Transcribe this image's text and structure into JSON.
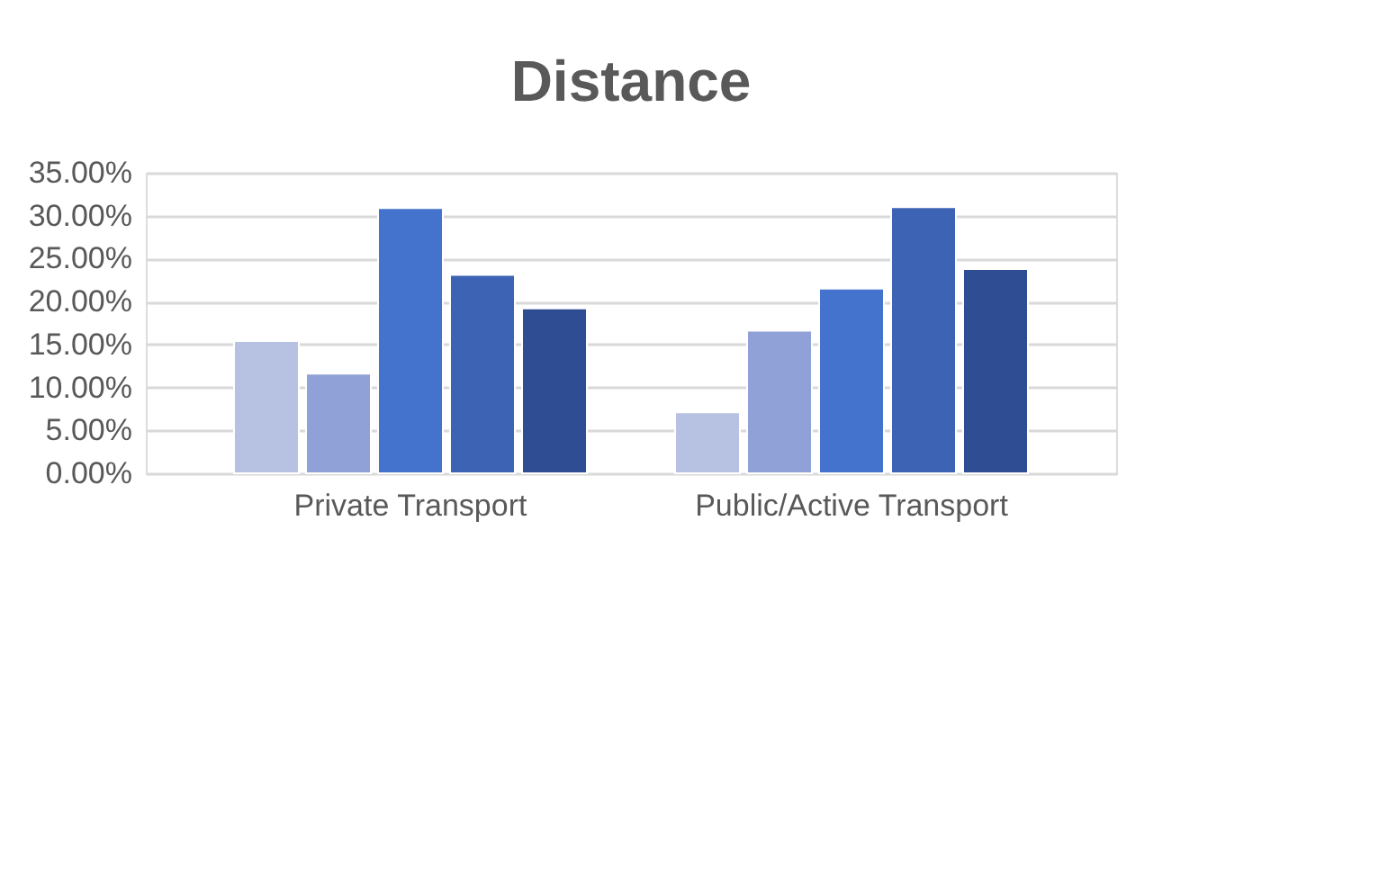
{
  "chart_data": {
    "type": "bar",
    "title": "Distance",
    "categories": [
      "Private Transport",
      "Public/Active Transport"
    ],
    "series": [
      {
        "color": "#b7c2e2",
        "values": [
          15.4,
          7.1
        ]
      },
      {
        "color": "#8fa1d6",
        "values": [
          11.6,
          16.6
        ]
      },
      {
        "color": "#4373cc",
        "values": [
          30.9,
          21.5
        ]
      },
      {
        "color": "#3d63b4",
        "values": [
          23.1,
          31.0
        ]
      },
      {
        "color": "#2f4d92",
        "values": [
          19.2,
          23.8
        ]
      }
    ],
    "ylim": [
      0,
      35
    ],
    "yticks": [
      {
        "value": 0,
        "label": "0.00%"
      },
      {
        "value": 5,
        "label": "5.00%"
      },
      {
        "value": 10,
        "label": "10.00%"
      },
      {
        "value": 15,
        "label": "15.00%"
      },
      {
        "value": 20,
        "label": "20.00%"
      },
      {
        "value": 25,
        "label": "25.00%"
      },
      {
        "value": 30,
        "label": "30.00%"
      },
      {
        "value": 35,
        "label": "35.00%"
      }
    ],
    "grid": "y",
    "legend": false
  }
}
